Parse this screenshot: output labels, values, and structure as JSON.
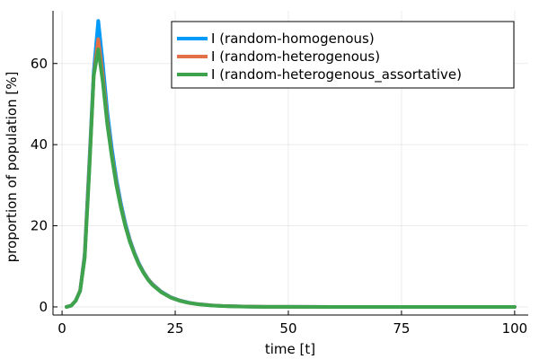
{
  "chart_data": {
    "type": "line",
    "xlabel": "time [t]",
    "ylabel": "proportion of population [%]",
    "xlim": [
      -2,
      103
    ],
    "ylim": [
      -2,
      73
    ],
    "xticks": [
      0,
      25,
      50,
      75,
      100
    ],
    "yticks": [
      0,
      20,
      40,
      60
    ],
    "grid": true,
    "legend_position": "top-right",
    "series": [
      {
        "name": "I (random-homogenous)",
        "color": "#009af9",
        "x": [
          1,
          2,
          3,
          4,
          5,
          6,
          7,
          8,
          9,
          10,
          11,
          12,
          13,
          14,
          15,
          16,
          17,
          18,
          19,
          20,
          22,
          24,
          26,
          28,
          30,
          33,
          36,
          40,
          45,
          50,
          60,
          70,
          80,
          90,
          100
        ],
        "y": [
          0,
          0.3,
          1.5,
          4,
          13,
          35,
          58,
          70.5,
          60,
          48,
          39,
          31.5,
          25.5,
          20.5,
          16.5,
          13.3,
          10.7,
          8.6,
          6.9,
          5.6,
          3.7,
          2.4,
          1.6,
          1.05,
          0.7,
          0.38,
          0.2,
          0.09,
          0.03,
          0.01,
          0,
          0,
          0,
          0,
          0
        ]
      },
      {
        "name": "I (random-heterogenous)",
        "color": "#e26f46",
        "x": [
          1,
          2,
          3,
          4,
          5,
          6,
          7,
          8,
          9,
          10,
          11,
          12,
          13,
          14,
          15,
          16,
          17,
          18,
          19,
          20,
          22,
          24,
          26,
          28,
          30,
          33,
          36,
          40,
          45,
          50,
          60,
          70,
          80,
          90,
          100
        ],
        "y": [
          0,
          0.3,
          1.5,
          4,
          12.5,
          34,
          57,
          66,
          57,
          46,
          37.5,
          30.5,
          24.8,
          20,
          16.2,
          13.1,
          10.5,
          8.5,
          6.8,
          5.5,
          3.6,
          2.35,
          1.55,
          1.0,
          0.68,
          0.37,
          0.2,
          0.09,
          0.03,
          0.01,
          0,
          0,
          0,
          0,
          0
        ]
      },
      {
        "name": "I (random-heterogenous_assortative)",
        "color": "#3da44d",
        "x": [
          1,
          2,
          3,
          4,
          5,
          6,
          7,
          8,
          9,
          10,
          11,
          12,
          13,
          14,
          15,
          16,
          17,
          18,
          19,
          20,
          22,
          24,
          26,
          28,
          30,
          33,
          36,
          40,
          45,
          50,
          60,
          70,
          80,
          90,
          100
        ],
        "y": [
          0,
          0.3,
          1.5,
          4,
          12,
          33,
          57,
          63.5,
          55.5,
          45,
          37,
          30,
          24.5,
          19.8,
          16,
          13,
          10.4,
          8.4,
          6.7,
          5.4,
          3.55,
          2.3,
          1.5,
          1.0,
          0.66,
          0.36,
          0.19,
          0.08,
          0.03,
          0.01,
          0,
          0,
          0,
          0,
          0
        ]
      }
    ]
  }
}
